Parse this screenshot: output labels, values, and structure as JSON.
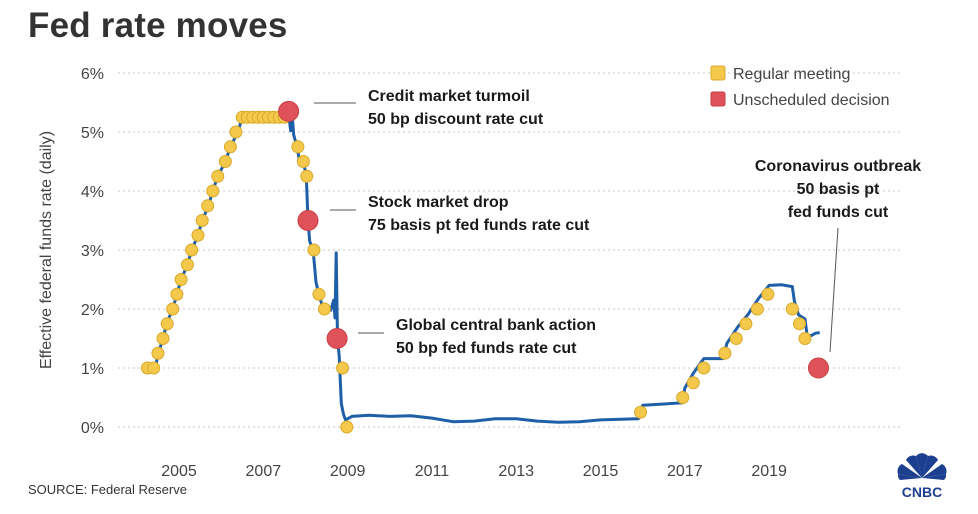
{
  "title": "Fed rate moves",
  "source": "SOURCE: Federal Reserve",
  "logo_text": "CNBC",
  "colors": {
    "line": "#1f5fa8",
    "regular": "#f3c84b",
    "unscheduled": "#e0525a",
    "grid": "#c9c9c9"
  },
  "chart_data": {
    "type": "line",
    "ylabel": "Effective federal funds rate (daily)",
    "ylim": [
      0,
      6
    ],
    "xlim": [
      2003.6,
      2020.8
    ],
    "yticks": [
      0,
      1,
      2,
      3,
      4,
      5,
      6
    ],
    "ytick_labels": [
      "0%",
      "1%",
      "2%",
      "3%",
      "4%",
      "5%",
      "6%"
    ],
    "xticks": [
      2005,
      2007,
      2009,
      2011,
      2013,
      2015,
      2017,
      2019
    ],
    "xtick_labels": [
      "2005",
      "2007",
      "2009",
      "2011",
      "2013",
      "2015",
      "2017",
      "2019"
    ],
    "grid": "horizontal dotted",
    "legend_position": "top-right",
    "legend": [
      {
        "label": "Regular meeting",
        "type": "regular"
      },
      {
        "label": "Unscheduled decision",
        "type": "unscheduled"
      }
    ],
    "series": [
      {
        "values": [
          [
            2004.25,
            1.0
          ],
          [
            2004.45,
            1.02
          ],
          [
            2004.5,
            1.25
          ],
          [
            2004.62,
            1.48
          ],
          [
            2004.7,
            1.75
          ],
          [
            2004.85,
            2.0
          ],
          [
            2004.95,
            2.25
          ],
          [
            2005.05,
            2.5
          ],
          [
            2005.2,
            2.75
          ],
          [
            2005.3,
            3.0
          ],
          [
            2005.45,
            3.25
          ],
          [
            2005.55,
            3.5
          ],
          [
            2005.7,
            3.75
          ],
          [
            2005.8,
            4.0
          ],
          [
            2005.92,
            4.25
          ],
          [
            2006.1,
            4.5
          ],
          [
            2006.22,
            4.75
          ],
          [
            2006.4,
            5.0
          ],
          [
            2006.5,
            5.25
          ],
          [
            2006.7,
            5.28
          ],
          [
            2006.9,
            5.22
          ],
          [
            2007.1,
            5.29
          ],
          [
            2007.3,
            5.25
          ],
          [
            2007.5,
            5.28
          ],
          [
            2007.6,
            5.3
          ],
          [
            2007.65,
            5.02
          ],
          [
            2007.68,
            5.32
          ],
          [
            2007.72,
            4.95
          ],
          [
            2007.8,
            4.75
          ],
          [
            2007.85,
            4.55
          ],
          [
            2007.95,
            4.5
          ],
          [
            2008.02,
            4.25
          ],
          [
            2008.06,
            3.5
          ],
          [
            2008.1,
            3.15
          ],
          [
            2008.18,
            3.0
          ],
          [
            2008.25,
            2.45
          ],
          [
            2008.32,
            2.25
          ],
          [
            2008.4,
            2.05
          ],
          [
            2008.5,
            2.0
          ],
          [
            2008.6,
            1.98
          ],
          [
            2008.67,
            2.15
          ],
          [
            2008.7,
            1.85
          ],
          [
            2008.73,
            2.95
          ],
          [
            2008.76,
            1.5
          ],
          [
            2008.8,
            1.2
          ],
          [
            2008.85,
            0.4
          ],
          [
            2008.9,
            0.22
          ],
          [
            2008.95,
            0.12
          ],
          [
            2009.1,
            0.18
          ],
          [
            2009.5,
            0.2
          ],
          [
            2010.0,
            0.18
          ],
          [
            2010.5,
            0.19
          ],
          [
            2011.0,
            0.15
          ],
          [
            2011.5,
            0.09
          ],
          [
            2012.0,
            0.1
          ],
          [
            2012.5,
            0.14
          ],
          [
            2013.0,
            0.14
          ],
          [
            2013.5,
            0.1
          ],
          [
            2014.0,
            0.08
          ],
          [
            2014.5,
            0.09
          ],
          [
            2015.0,
            0.12
          ],
          [
            2015.5,
            0.13
          ],
          [
            2015.9,
            0.14
          ],
          [
            2016.0,
            0.37
          ],
          [
            2016.5,
            0.39
          ],
          [
            2016.95,
            0.41
          ],
          [
            2017.0,
            0.66
          ],
          [
            2017.2,
            0.91
          ],
          [
            2017.45,
            1.16
          ],
          [
            2017.9,
            1.16
          ],
          [
            2018.0,
            1.42
          ],
          [
            2018.25,
            1.69
          ],
          [
            2018.5,
            1.91
          ],
          [
            2018.75,
            2.18
          ],
          [
            2019.0,
            2.4
          ],
          [
            2019.3,
            2.41
          ],
          [
            2019.55,
            2.38
          ],
          [
            2019.6,
            2.13
          ],
          [
            2019.7,
            1.9
          ],
          [
            2019.85,
            1.83
          ],
          [
            2019.9,
            1.55
          ],
          [
            2020.0,
            1.55
          ],
          [
            2020.1,
            1.59
          ],
          [
            2020.2,
            1.6
          ]
        ]
      }
    ],
    "regular_meetings": [
      [
        2004.25,
        1.0
      ],
      [
        2004.4,
        1.0
      ],
      [
        2004.5,
        1.25
      ],
      [
        2004.62,
        1.5
      ],
      [
        2004.72,
        1.75
      ],
      [
        2004.85,
        2.0
      ],
      [
        2004.95,
        2.25
      ],
      [
        2005.05,
        2.5
      ],
      [
        2005.2,
        2.75
      ],
      [
        2005.3,
        3.0
      ],
      [
        2005.45,
        3.25
      ],
      [
        2005.55,
        3.5
      ],
      [
        2005.68,
        3.75
      ],
      [
        2005.8,
        4.0
      ],
      [
        2005.92,
        4.25
      ],
      [
        2006.1,
        4.5
      ],
      [
        2006.22,
        4.75
      ],
      [
        2006.35,
        5.0
      ],
      [
        2006.5,
        5.25
      ],
      [
        2006.62,
        5.25
      ],
      [
        2006.75,
        5.25
      ],
      [
        2006.88,
        5.25
      ],
      [
        2007.0,
        5.25
      ],
      [
        2007.12,
        5.25
      ],
      [
        2007.25,
        5.25
      ],
      [
        2007.38,
        5.25
      ],
      [
        2007.5,
        5.25
      ],
      [
        2007.82,
        4.75
      ],
      [
        2007.95,
        4.5
      ],
      [
        2008.03,
        4.25
      ],
      [
        2008.2,
        3.0
      ],
      [
        2008.32,
        2.25
      ],
      [
        2008.45,
        2.0
      ],
      [
        2008.88,
        1.0
      ],
      [
        2008.98,
        0.0
      ],
      [
        2015.95,
        0.25
      ],
      [
        2016.95,
        0.5
      ],
      [
        2017.2,
        0.75
      ],
      [
        2017.45,
        1.0
      ],
      [
        2017.95,
        1.25
      ],
      [
        2018.22,
        1.5
      ],
      [
        2018.45,
        1.75
      ],
      [
        2018.72,
        2.0
      ],
      [
        2018.97,
        2.25
      ],
      [
        2019.55,
        2.0
      ],
      [
        2019.72,
        1.75
      ],
      [
        2019.85,
        1.5
      ]
    ],
    "unscheduled_decisions": [
      [
        2007.6,
        5.35
      ],
      [
        2008.06,
        3.5
      ],
      [
        2008.75,
        1.5
      ],
      [
        2020.17,
        1.0
      ]
    ],
    "annotations": [
      {
        "lines": [
          "Credit market turmoil",
          "50 bp discount rate cut"
        ],
        "x": 2007.6,
        "y": 5.35,
        "align": "left"
      },
      {
        "lines": [
          "Stock market drop",
          "75 basis pt fed funds rate cut"
        ],
        "x": 2008.06,
        "y": 3.5,
        "align": "left"
      },
      {
        "lines": [
          "Global central bank action",
          "50 bp fed funds rate cut"
        ],
        "x": 2008.75,
        "y": 1.5,
        "align": "left"
      },
      {
        "lines": [
          "Coronavirus outbreak",
          "50 basis pt",
          "fed funds cut"
        ],
        "x": 2020.17,
        "y": 1.0,
        "align": "center"
      }
    ]
  }
}
